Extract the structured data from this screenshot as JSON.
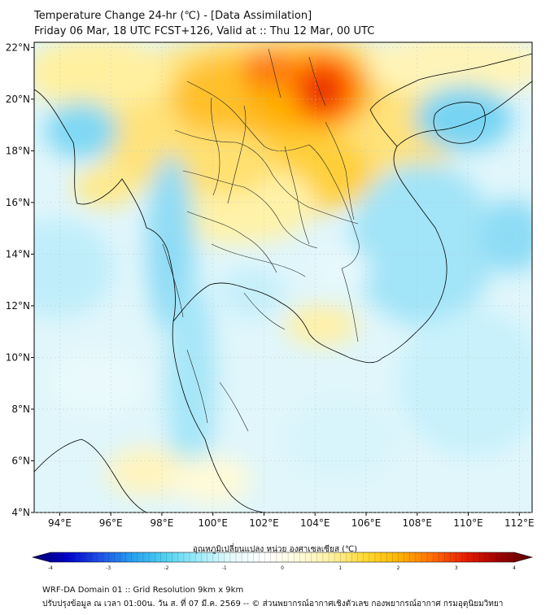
{
  "header": {
    "title_line1": "Temperature Change 24-hr (℃) - [Data Assimilation]",
    "title_line2": "Friday 06 Mar, 18 UTC FCST+126, Valid at :: Thu 12 Mar, 00 UTC"
  },
  "map": {
    "lon_range": [
      93,
      112.5
    ],
    "lat_range": [
      4,
      22.2
    ],
    "x_ticks": [
      "94°E",
      "96°E",
      "98°E",
      "100°E",
      "102°E",
      "104°E",
      "106°E",
      "108°E",
      "110°E",
      "112°E"
    ],
    "x_tick_values": [
      94,
      96,
      98,
      100,
      102,
      104,
      106,
      108,
      110,
      112
    ],
    "y_ticks": [
      "22°N",
      "20°N",
      "18°N",
      "16°N",
      "14°N",
      "12°N",
      "10°N",
      "8°N",
      "6°N",
      "4°N"
    ],
    "y_tick_values": [
      22,
      20,
      18,
      16,
      14,
      12,
      10,
      8,
      6,
      4
    ]
  },
  "colorbar": {
    "title": "อุณหภูมิเปลี่ยนแปลง หน่วย องศาเซลเซียส (℃)",
    "range": [
      -4,
      4
    ],
    "ticks": [
      "-4",
      "-3",
      "-2",
      "-1",
      "0",
      "1",
      "2",
      "3",
      "4"
    ],
    "tick_values": [
      -4,
      -3,
      -2,
      -1,
      0,
      1,
      2,
      3,
      4
    ],
    "colors": [
      "#00006a",
      "#0000c8",
      "#1e50e6",
      "#28a0f0",
      "#50d2f0",
      "#a0ecfa",
      "#e6fafc",
      "#ffffff",
      "#fffcdc",
      "#fff0a0",
      "#ffd932",
      "#ffb400",
      "#ff6e00",
      "#e61e00",
      "#a00000",
      "#5a0000"
    ]
  },
  "footer": {
    "line1": "WRF-DA Domain 01 :: Grid Resolution 9km x 9km",
    "line2": "ปรับปรุงข้อมูล ณ เวลา 01:00น. วัน ส. ที่ 07 มี.ค. 2569 -- © ส่วนพยากรณ์อากาศเชิงตัวเลข กองพยากรณ์อากาศ กรมอุตุนิยมวิทยา"
  }
}
